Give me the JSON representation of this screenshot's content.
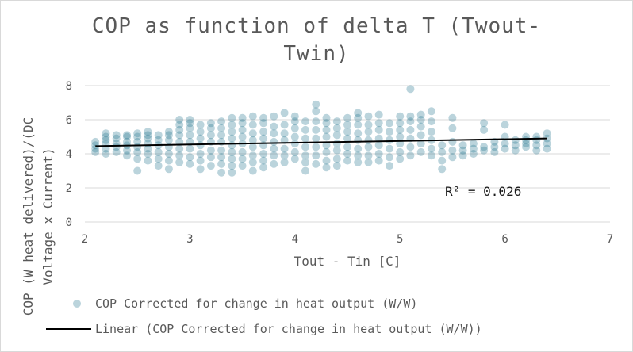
{
  "chart_data": {
    "type": "scatter",
    "title_lines": [
      "COP as function of delta T (Twout-",
      "Twin)"
    ],
    "xlabel": "Tout - Tin [C]",
    "ylabel_lines": [
      "COP (W heat delivered)/(DC",
      "Voltage x Current)"
    ],
    "xlim": [
      2,
      7
    ],
    "ylim": [
      0,
      8
    ],
    "xticks": [
      "2",
      "3",
      "4",
      "5",
      "6",
      "7"
    ],
    "yticks": [
      "0",
      "2",
      "4",
      "6",
      "8"
    ],
    "grid": "horizontal",
    "legend_position": "bottom",
    "r_squared_label": "R² = 0.026",
    "series": [
      {
        "name": "COP Corrected for change in heat output (W/W)",
        "color": "#1f6f8b",
        "x": [
          2.1,
          2.1,
          2.1,
          2.1,
          2.2,
          2.2,
          2.2,
          2.2,
          2.2,
          2.2,
          2.3,
          2.3,
          2.3,
          2.3,
          2.3,
          2.4,
          2.4,
          2.4,
          2.4,
          2.4,
          2.4,
          2.5,
          2.5,
          2.5,
          2.5,
          2.5,
          2.5,
          2.5,
          2.6,
          2.6,
          2.6,
          2.6,
          2.6,
          2.6,
          2.6,
          2.7,
          2.7,
          2.7,
          2.7,
          2.7,
          2.7,
          2.8,
          2.8,
          2.8,
          2.8,
          2.8,
          2.8,
          2.8,
          2.9,
          2.9,
          2.9,
          2.9,
          2.9,
          2.9,
          2.9,
          2.9,
          3.0,
          3.0,
          3.0,
          3.0,
          3.0,
          3.0,
          3.0,
          3.0,
          3.1,
          3.1,
          3.1,
          3.1,
          3.1,
          3.1,
          3.1,
          3.2,
          3.2,
          3.2,
          3.2,
          3.2,
          3.2,
          3.2,
          3.3,
          3.3,
          3.3,
          3.3,
          3.3,
          3.3,
          3.3,
          3.3,
          3.4,
          3.4,
          3.4,
          3.4,
          3.4,
          3.4,
          3.4,
          3.4,
          3.4,
          3.5,
          3.5,
          3.5,
          3.5,
          3.5,
          3.5,
          3.5,
          3.5,
          3.6,
          3.6,
          3.6,
          3.6,
          3.6,
          3.6,
          3.6,
          3.6,
          3.7,
          3.7,
          3.7,
          3.7,
          3.7,
          3.7,
          3.7,
          3.7,
          3.8,
          3.8,
          3.8,
          3.8,
          3.8,
          3.8,
          3.8,
          3.9,
          3.9,
          3.9,
          3.9,
          3.9,
          3.9,
          3.9,
          4.0,
          4.0,
          4.0,
          4.0,
          4.0,
          4.0,
          4.0,
          4.1,
          4.1,
          4.1,
          4.1,
          4.1,
          4.1,
          4.1,
          4.2,
          4.2,
          4.2,
          4.2,
          4.2,
          4.2,
          4.2,
          4.2,
          4.3,
          4.3,
          4.3,
          4.3,
          4.3,
          4.3,
          4.3,
          4.3,
          4.4,
          4.4,
          4.4,
          4.4,
          4.4,
          4.4,
          4.4,
          4.5,
          4.5,
          4.5,
          4.5,
          4.5,
          4.5,
          4.5,
          4.6,
          4.6,
          4.6,
          4.6,
          4.6,
          4.6,
          4.6,
          4.6,
          4.7,
          4.7,
          4.7,
          4.7,
          4.7,
          4.7,
          4.7,
          4.8,
          4.8,
          4.8,
          4.8,
          4.8,
          4.8,
          4.8,
          4.9,
          4.9,
          4.9,
          4.9,
          4.9,
          4.9,
          5.0,
          5.0,
          5.0,
          5.0,
          5.0,
          5.0,
          5.0,
          5.1,
          5.1,
          5.1,
          5.1,
          5.1,
          5.1,
          5.1,
          5.2,
          5.2,
          5.2,
          5.2,
          5.2,
          5.2,
          5.3,
          5.3,
          5.3,
          5.3,
          5.3,
          5.3,
          5.4,
          5.4,
          5.4,
          5.4,
          5.5,
          5.5,
          5.5,
          5.5,
          5.5,
          5.6,
          5.6,
          5.6,
          5.7,
          5.7,
          5.7,
          5.8,
          5.8,
          5.8,
          5.8,
          5.9,
          5.9,
          5.9,
          6.0,
          6.0,
          6.0,
          6.0,
          6.1,
          6.1,
          6.1,
          6.2,
          6.2,
          6.2,
          6.2,
          6.3,
          6.3,
          6.3,
          6.3,
          6.4,
          6.4,
          6.4,
          6.4
        ],
        "y": [
          4.1,
          4.3,
          4.5,
          4.7,
          4.0,
          4.3,
          4.6,
          4.8,
          5.0,
          5.2,
          4.1,
          4.4,
          4.6,
          4.9,
          5.1,
          3.9,
          4.2,
          4.5,
          4.7,
          5.0,
          5.1,
          3.0,
          3.7,
          4.1,
          4.4,
          4.7,
          5.0,
          5.2,
          3.6,
          4.0,
          4.3,
          4.6,
          4.9,
          5.1,
          5.3,
          3.3,
          3.7,
          4.1,
          4.5,
          4.8,
          5.1,
          3.1,
          3.6,
          4.0,
          4.4,
          4.8,
          5.1,
          5.3,
          3.5,
          3.9,
          4.3,
          4.7,
          5.1,
          5.4,
          5.7,
          6.0,
          3.4,
          3.8,
          4.3,
          4.7,
          5.1,
          5.5,
          5.8,
          6.0,
          3.1,
          3.6,
          4.0,
          4.5,
          4.9,
          5.3,
          5.7,
          3.3,
          3.8,
          4.2,
          4.7,
          5.1,
          5.5,
          5.8,
          2.9,
          3.4,
          3.8,
          4.2,
          4.7,
          5.1,
          5.5,
          5.9,
          2.9,
          3.3,
          3.7,
          4.1,
          4.5,
          4.9,
          5.3,
          5.7,
          6.1,
          3.3,
          3.7,
          4.1,
          4.6,
          5.0,
          5.4,
          5.8,
          6.1,
          3.0,
          3.5,
          3.9,
          4.4,
          4.8,
          5.2,
          5.7,
          6.2,
          3.2,
          3.6,
          4.0,
          4.5,
          4.9,
          5.3,
          5.8,
          6.1,
          3.4,
          3.9,
          4.3,
          4.7,
          5.2,
          5.6,
          6.2,
          3.5,
          3.9,
          4.3,
          4.8,
          5.2,
          5.7,
          6.4,
          3.7,
          4.1,
          4.6,
          5.0,
          5.5,
          5.9,
          6.2,
          3.0,
          3.5,
          3.9,
          4.4,
          4.9,
          5.4,
          5.9,
          3.4,
          3.9,
          4.4,
          4.9,
          5.4,
          5.9,
          6.5,
          6.9,
          3.2,
          3.6,
          4.1,
          4.5,
          5.0,
          5.4,
          5.8,
          6.1,
          3.3,
          3.7,
          4.2,
          4.6,
          5.1,
          5.5,
          5.9,
          3.6,
          4.0,
          4.4,
          4.9,
          5.3,
          5.7,
          6.1,
          3.5,
          3.9,
          4.3,
          4.8,
          5.2,
          5.7,
          6.1,
          6.4,
          3.5,
          3.9,
          4.4,
          4.8,
          5.3,
          5.7,
          6.2,
          3.6,
          4.0,
          4.5,
          4.9,
          5.4,
          5.8,
          6.3,
          3.3,
          3.8,
          4.3,
          4.8,
          5.3,
          5.8,
          3.7,
          4.1,
          4.6,
          5.0,
          5.4,
          5.8,
          6.2,
          3.9,
          4.4,
          4.9,
          5.4,
          5.9,
          6.2,
          7.8,
          4.1,
          4.6,
          5.1,
          5.6,
          6.0,
          6.3,
          3.9,
          4.3,
          4.8,
          5.3,
          5.9,
          6.5,
          3.1,
          3.6,
          4.1,
          4.5,
          3.8,
          4.2,
          4.7,
          5.5,
          6.1,
          3.9,
          4.2,
          4.5,
          4.0,
          4.3,
          4.6,
          4.2,
          4.4,
          5.4,
          5.8,
          4.1,
          4.4,
          4.7,
          4.3,
          4.6,
          5.0,
          5.7,
          4.2,
          4.5,
          4.8,
          4.4,
          4.6,
          4.8,
          5.0,
          4.2,
          4.5,
          4.8,
          5.0,
          4.3,
          4.6,
          4.9,
          5.2
        ]
      },
      {
        "name": "Linear (COP Corrected for change in heat output (W/W))",
        "color": "#000000",
        "line_x": [
          2.1,
          6.4
        ],
        "line_y": [
          4.45,
          4.9
        ]
      }
    ]
  }
}
